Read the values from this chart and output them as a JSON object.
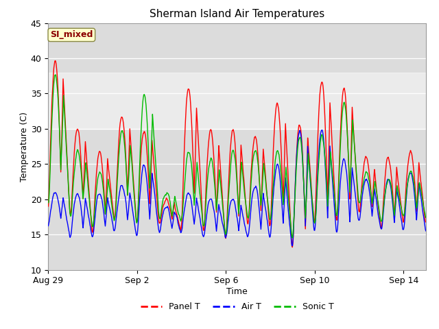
{
  "title": "Sherman Island Air Temperatures",
  "xlabel": "Time",
  "ylabel": "Temperature (C)",
  "ylim": [
    10,
    45
  ],
  "yticks": [
    10,
    15,
    20,
    25,
    30,
    35,
    40,
    45
  ],
  "xtick_labels": [
    "Aug 29",
    "Sep 2",
    "Sep 6",
    "Sep 10",
    "Sep 14"
  ],
  "xtick_positions": [
    0,
    4,
    8,
    12,
    16
  ],
  "panel_color": "#ff0000",
  "air_color": "#0000ff",
  "sonic_color": "#00bb00",
  "bg_color": "#dcdcdc",
  "plot_bg": "#dcdcdc",
  "legend_label_box": "SI_mixed",
  "legend_entries": [
    "Panel T",
    "Air T",
    "Sonic T"
  ],
  "shaded_band_light": [
    30,
    38
  ],
  "total_days": 17
}
